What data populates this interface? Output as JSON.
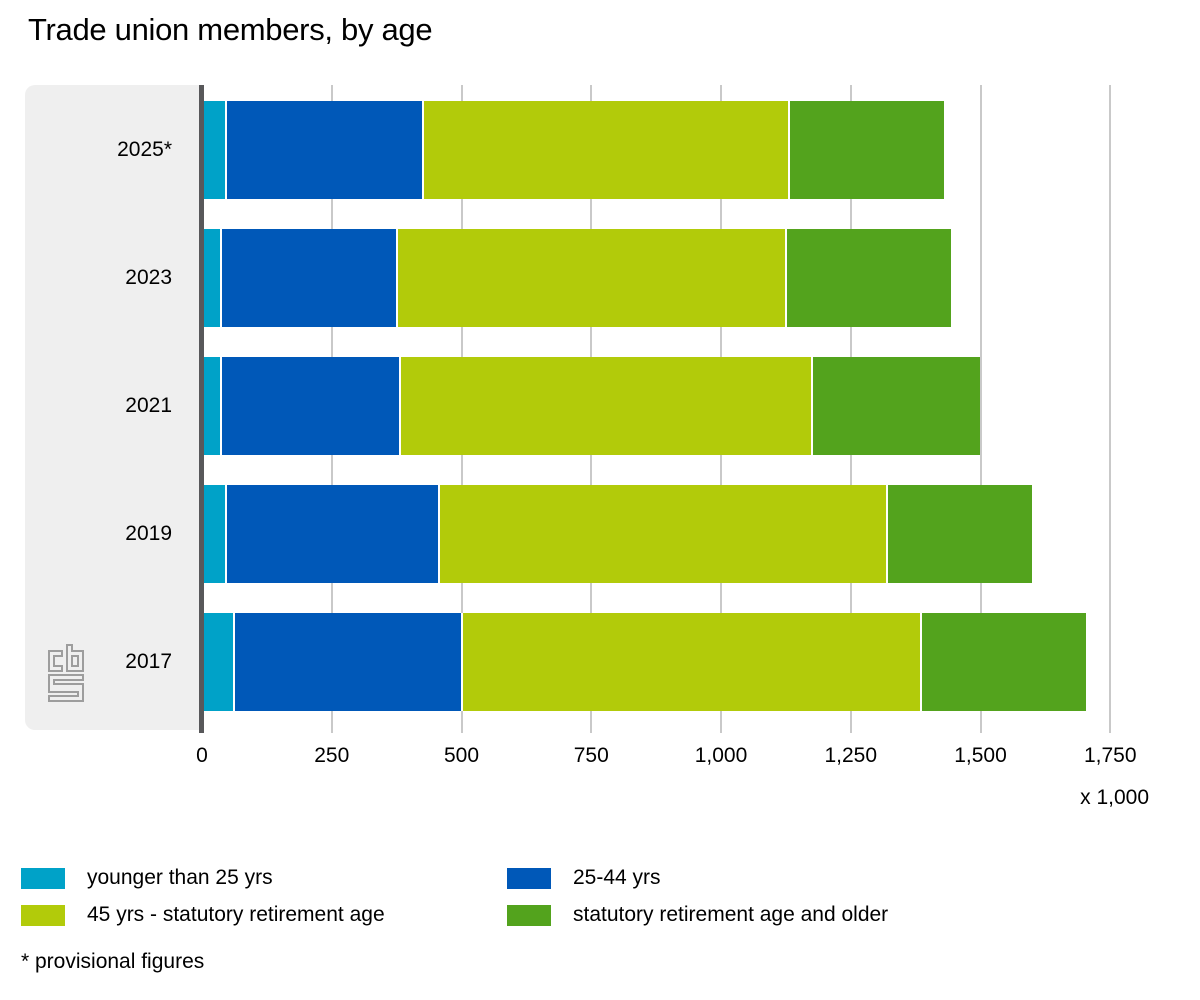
{
  "title": "Trade union members, by age",
  "footnote": "* provisional figures",
  "axis": {
    "unit_label": "x 1,000",
    "ticks": [
      "0",
      "250",
      "500",
      "750",
      "1,000",
      "1,250",
      "1,500",
      "1,750"
    ],
    "tick_values": [
      0,
      250,
      500,
      750,
      1000,
      1250,
      1500,
      1750
    ]
  },
  "colors": {
    "younger": "#00a2c8",
    "mid": "#0058b8",
    "older": "#b2cb0a",
    "retired": "#53a31d",
    "axis_line": "#58585a",
    "gridline": "#c9c9c9",
    "panel": "#efefef",
    "logo": "#9d9d9d"
  },
  "chart_data": {
    "type": "bar",
    "orientation": "horizontal",
    "stacked": true,
    "title": "Trade union members, by age",
    "xlabel": "x 1,000",
    "xlim": [
      0,
      1750
    ],
    "grid": true,
    "legend_position": "bottom",
    "categories": [
      "2025*",
      "2023",
      "2021",
      "2019",
      "2017"
    ],
    "series": [
      {
        "name": "younger than 25 yrs",
        "color_key": "younger",
        "values": [
          40,
          30,
          30,
          40,
          55
        ]
      },
      {
        "name": "25-44 yrs",
        "color_key": "mid",
        "values": [
          380,
          340,
          345,
          410,
          440
        ]
      },
      {
        "name": "45 yrs - statutory retirement age",
        "color_key": "older",
        "values": [
          705,
          750,
          795,
          865,
          885
        ]
      },
      {
        "name": "statutory retirement age and older",
        "color_key": "retired",
        "values": [
          300,
          320,
          325,
          280,
          320
        ]
      }
    ],
    "totals": [
      1425,
      1440,
      1495,
      1595,
      1700
    ]
  }
}
